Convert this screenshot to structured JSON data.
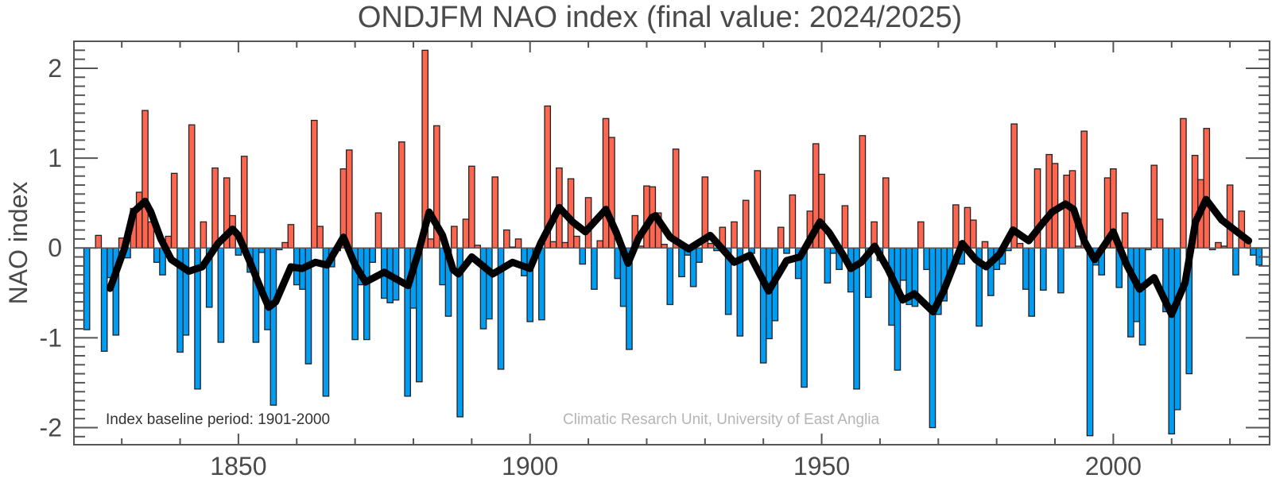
{
  "chart_data": {
    "type": "bar",
    "title": "ONDJFM NAO index (final value: 2024/2025)",
    "xlabel": "",
    "ylabel": "NAO index",
    "xlim": [
      1821.8,
      2026.8
    ],
    "ylim": [
      -2.19,
      2.3
    ],
    "xticks": [
      1850,
      1900,
      1950,
      2000
    ],
    "xtick_labels": [
      "1850",
      "1900",
      "1950",
      "2000"
    ],
    "yticks": [
      -2,
      -1,
      0,
      1,
      2
    ],
    "ytick_labels": [
      "-2",
      "-1",
      "0",
      "1",
      "2"
    ],
    "grid": false,
    "first_year": 1824,
    "last_year": 2025,
    "values": [
      -0.91,
      0,
      0.14,
      -1.15,
      -0.33,
      -0.97,
      0.11,
      -0.11,
      0.44,
      0.62,
      1.53,
      0.29,
      -0.16,
      -0.3,
      0.13,
      0.83,
      -1.16,
      -0.97,
      1.37,
      -1.57,
      0.29,
      -0.66,
      0.89,
      -1.05,
      0.78,
      0.36,
      -0.08,
      1.02,
      -0.27,
      -1.05,
      -0.05,
      -0.91,
      -1.75,
      -0.02,
      0.06,
      0.26,
      -0.41,
      -0.46,
      -1.29,
      1.42,
      0.24,
      -1.65,
      -0.21,
      -0.03,
      0.88,
      1.09,
      -1.02,
      -0.41,
      -1.02,
      -0.16,
      0.39,
      -0.56,
      -0.61,
      -0.58,
      1.18,
      -1.65,
      -0.67,
      -1.49,
      2.2,
      0.1,
      1.36,
      -0.41,
      -0.76,
      0.24,
      -1.88,
      0.32,
      0.91,
      0.03,
      -0.9,
      -0.79,
      0.79,
      -1.35,
      0.2,
      0.01,
      0.1,
      -0.31,
      -0.82,
      -0.05,
      -0.8,
      1.58,
      0.07,
      0.89,
      0.06,
      0.77,
      0.13,
      -0.18,
      0.56,
      -0.46,
      0.08,
      1.44,
      1.23,
      -0.34,
      -0.65,
      -1.13,
      0.36,
      0.02,
      0.69,
      0.68,
      0.39,
      0.04,
      -0.63,
      1.1,
      -0.32,
      -0.08,
      -0.43,
      -0.16,
      0.79,
      0.05,
      -0.03,
      0.23,
      -0.74,
      0.29,
      -0.98,
      0.53,
      -0.06,
      0.86,
      -1.28,
      -1.01,
      -0.81,
      0.23,
      -0.06,
      0.59,
      -0.34,
      -1.55,
      0.41,
      1.16,
      0.82,
      -0.39,
      -0.06,
      -0.24,
      0.47,
      -0.49,
      -1.57,
      1.25,
      -0.55,
      0.29,
      -0.14,
      0.78,
      -0.86,
      -1.36,
      -0.36,
      -0.63,
      -0.65,
      0.29,
      -0.24,
      -2.0,
      -0.74,
      -0.59,
      -0.25,
      0.48,
      -0.18,
      0.45,
      0.31,
      -0.87,
      0.07,
      -0.53,
      -0.24,
      -0.18,
      -0.03,
      1.38,
      0.05,
      -0.46,
      -0.76,
      0.88,
      -0.47,
      1.04,
      0.94,
      -0.5,
      0.81,
      0.86,
      0.02,
      1.3,
      -2.09,
      -0.19,
      -0.3,
      0.78,
      0.88,
      -0.44,
      0.39,
      -0.99,
      -0.82,
      -1.08,
      -0.02,
      0.92,
      0.32,
      -0.71,
      -2.07,
      -1.8,
      1.44,
      -1.4,
      1.03,
      0.76,
      1.33,
      -0.02,
      0.06,
      0.02,
      0.7,
      -0.3,
      0.41,
      0.06,
      -0.08,
      -0.19
    ],
    "smoothed": {
      "x": [
        1828,
        1830.5,
        1832,
        1834,
        1835,
        1836.7,
        1838.5,
        1841.5,
        1843.8,
        1846.5,
        1849,
        1850,
        1852,
        1854,
        1855.2,
        1856.4,
        1859,
        1860.9,
        1863.2,
        1865.2,
        1868,
        1870,
        1871.8,
        1875,
        1879.1,
        1880.9,
        1882.7,
        1885,
        1886.8,
        1887.7,
        1890,
        1893.6,
        1897,
        1900,
        1901.8,
        1905,
        1907.3,
        1909.5,
        1913,
        1914.8,
        1916.8,
        1918.6,
        1920.9,
        1921.5,
        1924,
        1927.2,
        1930.9,
        1935,
        1937.7,
        1940.9,
        1944,
        1946.3,
        1949.7,
        1951.3,
        1953.6,
        1955,
        1956.8,
        1959.1,
        1961.4,
        1963.9,
        1965.9,
        1969.1,
        1970.9,
        1974.1,
        1976.4,
        1978.2,
        1980.5,
        1982.8,
        1985.5,
        1987.7,
        1989.5,
        1991.8,
        1993.2,
        1995,
        1996.8,
        2000,
        2002.3,
        2004.5,
        2007,
        2010,
        2012.3,
        2014.1,
        2015.9,
        2018.6,
        2021.4,
        2023.2
      ],
      "y": [
        -0.45,
        0,
        0.4,
        0.52,
        0.4,
        0.1,
        -0.13,
        -0.26,
        -0.21,
        0.05,
        0.21,
        0.14,
        -0.16,
        -0.48,
        -0.66,
        -0.6,
        -0.21,
        -0.23,
        -0.16,
        -0.19,
        0.12,
        -0.19,
        -0.38,
        -0.27,
        -0.42,
        -0.04,
        0.4,
        0.14,
        -0.24,
        -0.29,
        -0.1,
        -0.29,
        -0.16,
        -0.23,
        0.05,
        0.45,
        0.29,
        0.18,
        0.43,
        0.17,
        -0.17,
        0.11,
        0.34,
        0.36,
        0.12,
        -0.01,
        0.14,
        -0.16,
        -0.08,
        -0.48,
        -0.14,
        -0.1,
        0.29,
        0.17,
        -0.07,
        -0.23,
        -0.16,
        0.02,
        -0.24,
        -0.58,
        -0.51,
        -0.71,
        -0.48,
        0.05,
        -0.13,
        -0.21,
        -0.07,
        0.2,
        0.08,
        0.26,
        0.4,
        0.49,
        0.43,
        0.08,
        -0.13,
        0.18,
        -0.19,
        -0.46,
        -0.33,
        -0.74,
        -0.39,
        0.29,
        0.54,
        0.31,
        0.17,
        0.08
      ]
    },
    "colors": {
      "positive": "#FF6650",
      "negative": "#009DF5",
      "smoothed": "#000000"
    },
    "annotations": {
      "baseline": "Index baseline period: 1901-2000",
      "credit": "Climatic Resarch Unit, University of East Anglia"
    }
  }
}
